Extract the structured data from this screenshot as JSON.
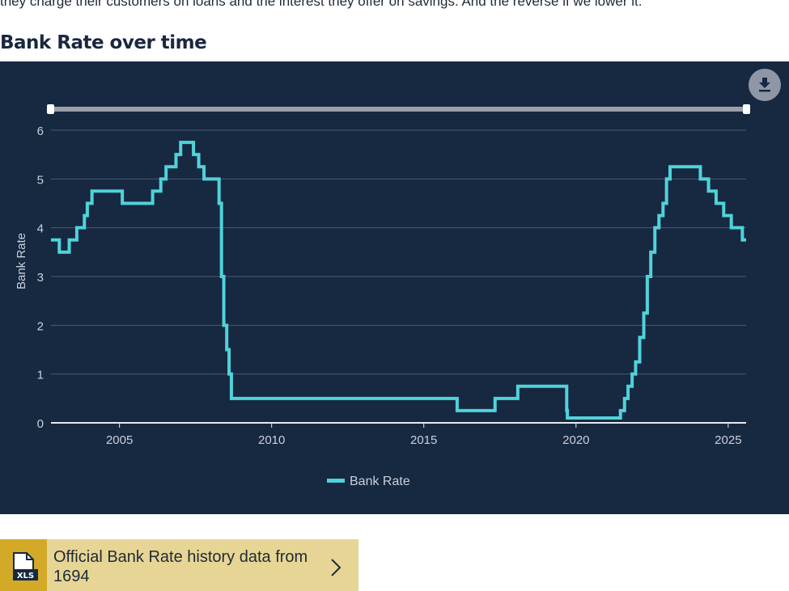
{
  "intro_text": "they charge their customers on loans and the interest they offer on savings. And the reverse if we lower it.",
  "section_title": "Bank Rate over time",
  "download_icon": "download-icon",
  "colors": {
    "background": "#172841",
    "series": "#4fd3d9",
    "grid": "#4a5a72",
    "card": "#e7d595",
    "card_tab": "#d2aa27"
  },
  "link_card": {
    "label": "Official Bank Rate history data from 1694",
    "badge": "XLS",
    "icon": "xls-file-icon"
  },
  "chart_data": {
    "type": "line",
    "step": true,
    "title": "",
    "xlabel": "",
    "ylabel": "Bank Rate",
    "ylim": [
      0,
      6
    ],
    "xlim": [
      "2003-04-01",
      "2026-02-01"
    ],
    "yticks": [
      0,
      1,
      2,
      3,
      4,
      5,
      6
    ],
    "xticks": [
      "2005",
      "2010",
      "2015",
      "2020",
      "2025"
    ],
    "grid": true,
    "legend": "bottom-center",
    "range_slider": true,
    "series": [
      {
        "name": "Bank Rate",
        "points": [
          [
            "2003-04-01",
            3.75
          ],
          [
            "2003-07-10",
            3.5
          ],
          [
            "2003-11-06",
            3.75
          ],
          [
            "2004-02-05",
            4.0
          ],
          [
            "2004-05-06",
            4.25
          ],
          [
            "2004-06-10",
            4.5
          ],
          [
            "2004-08-05",
            4.75
          ],
          [
            "2005-08-04",
            4.5
          ],
          [
            "2006-08-03",
            4.75
          ],
          [
            "2006-11-09",
            5.0
          ],
          [
            "2007-01-11",
            5.25
          ],
          [
            "2007-05-10",
            5.5
          ],
          [
            "2007-07-05",
            5.75
          ],
          [
            "2007-12-06",
            5.5
          ],
          [
            "2008-02-07",
            5.25
          ],
          [
            "2008-04-10",
            5.0
          ],
          [
            "2008-10-08",
            4.5
          ],
          [
            "2008-11-06",
            3.0
          ],
          [
            "2008-12-04",
            2.0
          ],
          [
            "2009-01-08",
            1.5
          ],
          [
            "2009-02-05",
            1.0
          ],
          [
            "2009-03-05",
            0.5
          ],
          [
            "2016-08-04",
            0.25
          ],
          [
            "2017-11-02",
            0.5
          ],
          [
            "2018-08-02",
            0.75
          ],
          [
            "2020-03-11",
            0.25
          ],
          [
            "2020-03-19",
            0.1
          ],
          [
            "2021-12-16",
            0.25
          ],
          [
            "2022-02-03",
            0.5
          ],
          [
            "2022-03-17",
            0.75
          ],
          [
            "2022-05-05",
            1.0
          ],
          [
            "2022-06-16",
            1.25
          ],
          [
            "2022-08-04",
            1.75
          ],
          [
            "2022-09-22",
            2.25
          ],
          [
            "2022-11-03",
            3.0
          ],
          [
            "2022-12-15",
            3.5
          ],
          [
            "2023-02-02",
            4.0
          ],
          [
            "2023-03-23",
            4.25
          ],
          [
            "2023-05-11",
            4.5
          ],
          [
            "2023-06-22",
            5.0
          ],
          [
            "2023-08-03",
            5.25
          ],
          [
            "2024-08-01",
            5.0
          ],
          [
            "2024-11-07",
            4.75
          ],
          [
            "2025-02-06",
            4.5
          ],
          [
            "2025-05-08",
            4.25
          ],
          [
            "2025-08-07",
            4.0
          ],
          [
            "2025-12-18",
            3.75
          ],
          [
            "2026-02-01",
            3.75
          ]
        ]
      }
    ]
  }
}
